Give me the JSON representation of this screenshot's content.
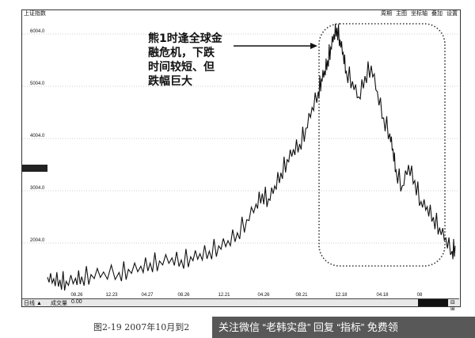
{
  "window": {
    "title": "上证指数"
  },
  "toolbar": {
    "items": [
      "周期",
      "主图",
      "坐标轴",
      "叠加",
      "设置"
    ]
  },
  "annotation": {
    "lines": [
      "熊1时逢全球金",
      "融危机，下跌",
      "时间较短、但",
      "跌幅巨大"
    ]
  },
  "volume_panel": {
    "label": "日线 ▲",
    "indicator": "成交量",
    "value": "0.00"
  },
  "caption": "图2-19  2007年10月到2",
  "watermark": "关注微信 “老韩实盘” 回复 “指标” 免费领",
  "colors": {
    "price_line": "#111111",
    "grid": "#999999",
    "highlight_box": "#333333",
    "marker": "#222222"
  },
  "chart_data": {
    "type": "line",
    "title": "上证指数",
    "yticks": [
      2004.0,
      3004.0,
      4004.0,
      5004.0,
      6004.0
    ],
    "ytick_labels": [
      "2004.0",
      "3004.0",
      "4004.0",
      "5004.0",
      "6004.0"
    ],
    "xtick_labels": [
      "08.26",
      "12.23",
      "04.27",
      "08.26",
      "12.21",
      "04.26",
      "08.21",
      "12.18",
      "04.18",
      "08"
    ],
    "ylim": [
      1200,
      6300
    ],
    "grid": true,
    "series": [
      {
        "x": [
          0,
          4,
          8,
          12,
          18,
          22,
          28,
          36,
          46,
          52,
          60,
          66,
          72,
          80,
          86,
          92,
          98,
          104,
          110,
          116,
          122,
          128,
          134,
          138,
          142,
          146,
          150,
          154,
          158,
          162,
          166,
          170,
          174,
          176,
          178,
          180,
          182,
          184,
          186,
          188,
          190,
          192,
          196,
          200,
          204,
          208,
          212,
          216,
          220,
          222,
          224,
          228,
          232,
          236,
          240,
          244,
          248,
          252,
          256,
          260,
          262
        ],
        "values": [
          1350,
          1320,
          1300,
          1270,
          1330,
          1360,
          1400,
          1450,
          1440,
          1500,
          1560,
          1620,
          1660,
          1720,
          1680,
          1740,
          1800,
          1850,
          1950,
          2050,
          2200,
          2450,
          2750,
          2950,
          2850,
          3100,
          3350,
          3600,
          3800,
          3900,
          4200,
          4600,
          4900,
          5150,
          5300,
          5500,
          5750,
          6000,
          6124,
          5900,
          5650,
          5300,
          5100,
          4800,
          5200,
          5400,
          4900,
          4400,
          4100,
          3800,
          3400,
          3100,
          3500,
          3200,
          2800,
          2700,
          2500,
          2300,
          2100,
          1850,
          1950
        ]
      }
    ]
  }
}
